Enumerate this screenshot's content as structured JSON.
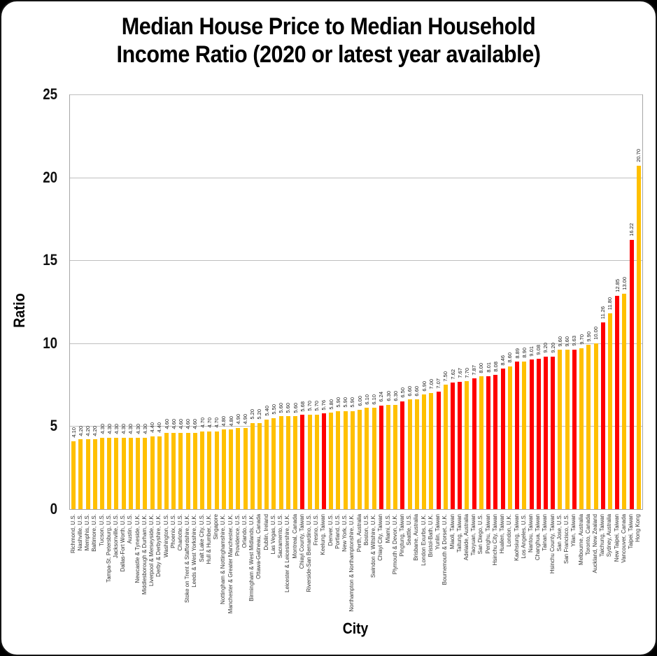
{
  "chart_data": {
    "type": "bar",
    "title": "Median House Price to Median Household Income Ratio (2020 or latest year available)",
    "title_lines": [
      "Median House Price to Median Household",
      "Income Ratio (2020 or latest year available)"
    ],
    "xlabel": "City",
    "ylabel": "Ratio",
    "ylim": [
      0,
      25
    ],
    "yticks": [
      0,
      5,
      10,
      15,
      20,
      25
    ],
    "grid": "horizontal",
    "legend": "none",
    "value_label_decimals": 2,
    "colors": {
      "bar_yellow": "#FFC000",
      "bar_red": "#FF0000",
      "gridline": "#BFBFBF",
      "axis_line": "#A6A6A6",
      "text": "#000000",
      "card_background": "#FFFFFF",
      "page_background": "#000000"
    },
    "bars": [
      {
        "city": "Richmond, U.S.",
        "value": 4.1,
        "color": "yellow"
      },
      {
        "city": "Nashville, U.S.",
        "value": 4.2,
        "color": "yellow"
      },
      {
        "city": "Memphis, U.S.",
        "value": 4.2,
        "color": "yellow"
      },
      {
        "city": "Baltimore, U.S.",
        "value": 4.2,
        "color": "yellow"
      },
      {
        "city": "Tucson, U.S.",
        "value": 4.3,
        "color": "yellow"
      },
      {
        "city": "Tampa-St. Petersburg, U.S.",
        "value": 4.3,
        "color": "yellow"
      },
      {
        "city": "Jacksonville, U.S.",
        "value": 4.3,
        "color": "yellow"
      },
      {
        "city": "Dallas-Fort Worth, U.S.",
        "value": 4.3,
        "color": "yellow"
      },
      {
        "city": "Austin, U.S.",
        "value": 4.3,
        "color": "yellow"
      },
      {
        "city": "Newcastle & Tyneside, U.K.",
        "value": 4.3,
        "color": "yellow"
      },
      {
        "city": "Middlesborough & Durham, U.K.",
        "value": 4.3,
        "color": "yellow"
      },
      {
        "city": "Liverpool & Merseyside, U.K.",
        "value": 4.4,
        "color": "yellow"
      },
      {
        "city": "Derby & Derbyshire, U.K.",
        "value": 4.4,
        "color": "yellow"
      },
      {
        "city": "Washington, U.S.",
        "value": 4.6,
        "color": "yellow"
      },
      {
        "city": "Phoenix, U.S.",
        "value": 4.6,
        "color": "yellow"
      },
      {
        "city": "Charlotte, U.S.",
        "value": 4.6,
        "color": "yellow"
      },
      {
        "city": "Stoke on Trent & Staffordshire, U.K.",
        "value": 4.6,
        "color": "yellow"
      },
      {
        "city": "Leeds & West Yorkshire, U.K.",
        "value": 4.6,
        "color": "yellow"
      },
      {
        "city": "Salt Lake City, U.S.",
        "value": 4.7,
        "color": "yellow"
      },
      {
        "city": "Hull & Humber, U.K.",
        "value": 4.7,
        "color": "yellow"
      },
      {
        "city": "Singapore",
        "value": 4.7,
        "color": "yellow"
      },
      {
        "city": "Nottingham & Nottinghamshire, U.K.",
        "value": 4.8,
        "color": "yellow"
      },
      {
        "city": "Manchester & Greater Manchester, U.K.",
        "value": 4.8,
        "color": "yellow"
      },
      {
        "city": "Providence, U.S.",
        "value": 4.9,
        "color": "yellow"
      },
      {
        "city": "Orlando, U.S.",
        "value": 4.9,
        "color": "yellow"
      },
      {
        "city": "Birmingham & West Midlands, U.K.",
        "value": 5.2,
        "color": "yellow"
      },
      {
        "city": "Ottawa-Gatineau, Canada",
        "value": 5.2,
        "color": "yellow"
      },
      {
        "city": "Dublin, Ireland",
        "value": 5.4,
        "color": "yellow"
      },
      {
        "city": "Las Vegas, U.S.",
        "value": 5.5,
        "color": "yellow"
      },
      {
        "city": "Sacramento, U.S.",
        "value": 5.6,
        "color": "yellow"
      },
      {
        "city": "Leicester & Leicestershire, U.K.",
        "value": 5.6,
        "color": "yellow"
      },
      {
        "city": "Montreal, Canada",
        "value": 5.6,
        "color": "yellow"
      },
      {
        "city": "Chiayi County, Taiwan",
        "value": 5.68,
        "color": "red"
      },
      {
        "city": "Riverside-San Bernardino, U.S.",
        "value": 5.7,
        "color": "yellow"
      },
      {
        "city": "Fresno, U.S.",
        "value": 5.7,
        "color": "yellow"
      },
      {
        "city": "Keelung, Taiwan",
        "value": 5.76,
        "color": "red"
      },
      {
        "city": "Denver, U.S.",
        "value": 5.8,
        "color": "yellow"
      },
      {
        "city": "Portland, U.S.",
        "value": 5.9,
        "color": "yellow"
      },
      {
        "city": "New York, U.S.",
        "value": 5.9,
        "color": "yellow"
      },
      {
        "city": "Northampton & Northamptonshire, U.K.",
        "value": 5.9,
        "color": "yellow"
      },
      {
        "city": "Perth, Australia",
        "value": 6.0,
        "color": "yellow"
      },
      {
        "city": "Boston, U.S.",
        "value": 6.1,
        "color": "yellow"
      },
      {
        "city": "Swindon & Wiltshire, U.K.",
        "value": 6.1,
        "color": "yellow"
      },
      {
        "city": "Chiayi City, Taiwan",
        "value": 6.24,
        "color": "red"
      },
      {
        "city": "Miami, U.S.",
        "value": 6.3,
        "color": "yellow"
      },
      {
        "city": "Plymouth & Devon, U.K.",
        "value": 6.3,
        "color": "yellow"
      },
      {
        "city": "Pingtung, Taiwan",
        "value": 6.5,
        "color": "red"
      },
      {
        "city": "Seattle, U.S.",
        "value": 6.6,
        "color": "yellow"
      },
      {
        "city": "Brisbane, Australia",
        "value": 6.6,
        "color": "yellow"
      },
      {
        "city": "London Exurbs, U.K.",
        "value": 6.9,
        "color": "yellow"
      },
      {
        "city": "Bristol-Bath, U.K.",
        "value": 7.0,
        "color": "yellow"
      },
      {
        "city": "Yunlin, Taiwan",
        "value": 7.07,
        "color": "red"
      },
      {
        "city": "Bournemouth & Dorset, U.K.",
        "value": 7.5,
        "color": "yellow"
      },
      {
        "city": "Miaoli, Taiwan",
        "value": 7.62,
        "color": "red"
      },
      {
        "city": "Taitung, Taiwan",
        "value": 7.67,
        "color": "red"
      },
      {
        "city": "Adelaide, Australia",
        "value": 7.7,
        "color": "yellow"
      },
      {
        "city": "Taoyuan, Taiwan",
        "value": 7.87,
        "color": "red"
      },
      {
        "city": "San Diego, U.S.",
        "value": 8.0,
        "color": "yellow"
      },
      {
        "city": "Penghu, Taiwan",
        "value": 8.01,
        "color": "red"
      },
      {
        "city": "Hsinchu City, Taiwan",
        "value": 8.08,
        "color": "red"
      },
      {
        "city": "Hualien, Taiwan",
        "value": 8.46,
        "color": "red"
      },
      {
        "city": "London, U.K.",
        "value": 8.6,
        "color": "yellow"
      },
      {
        "city": "Kaohsiung, Taiwan",
        "value": 8.89,
        "color": "red"
      },
      {
        "city": "Los Angeles, U.S.",
        "value": 8.9,
        "color": "yellow"
      },
      {
        "city": "Nantou, Taiwan",
        "value": 9.01,
        "color": "red"
      },
      {
        "city": "Changhua, Taiwan",
        "value": 9.08,
        "color": "red"
      },
      {
        "city": "Tainan, Taiwan",
        "value": 9.2,
        "color": "red"
      },
      {
        "city": "Hsinchu County, Taiwan",
        "value": 9.2,
        "color": "red"
      },
      {
        "city": "San Jose, U.S.",
        "value": 9.6,
        "color": "yellow"
      },
      {
        "city": "San Francisco, U.S.",
        "value": 9.6,
        "color": "yellow"
      },
      {
        "city": "Yilan, Taiwan",
        "value": 9.63,
        "color": "red"
      },
      {
        "city": "Melbourne, Australia",
        "value": 9.7,
        "color": "yellow"
      },
      {
        "city": "Toronto, Canada",
        "value": 9.9,
        "color": "yellow"
      },
      {
        "city": "Auckland, New Zealand",
        "value": 10.0,
        "color": "yellow"
      },
      {
        "city": "Taichung, Taiwan",
        "value": 11.26,
        "color": "red"
      },
      {
        "city": "Sydney, Australia",
        "value": 11.8,
        "color": "yellow"
      },
      {
        "city": "New Taipei, Taiwan",
        "value": 12.85,
        "color": "red"
      },
      {
        "city": "Vancouver, Canada",
        "value": 13.0,
        "color": "yellow"
      },
      {
        "city": "Taipei, Taiwan",
        "value": 16.22,
        "color": "red"
      },
      {
        "city": "Hong Kong",
        "value": 20.7,
        "color": "yellow"
      }
    ]
  }
}
